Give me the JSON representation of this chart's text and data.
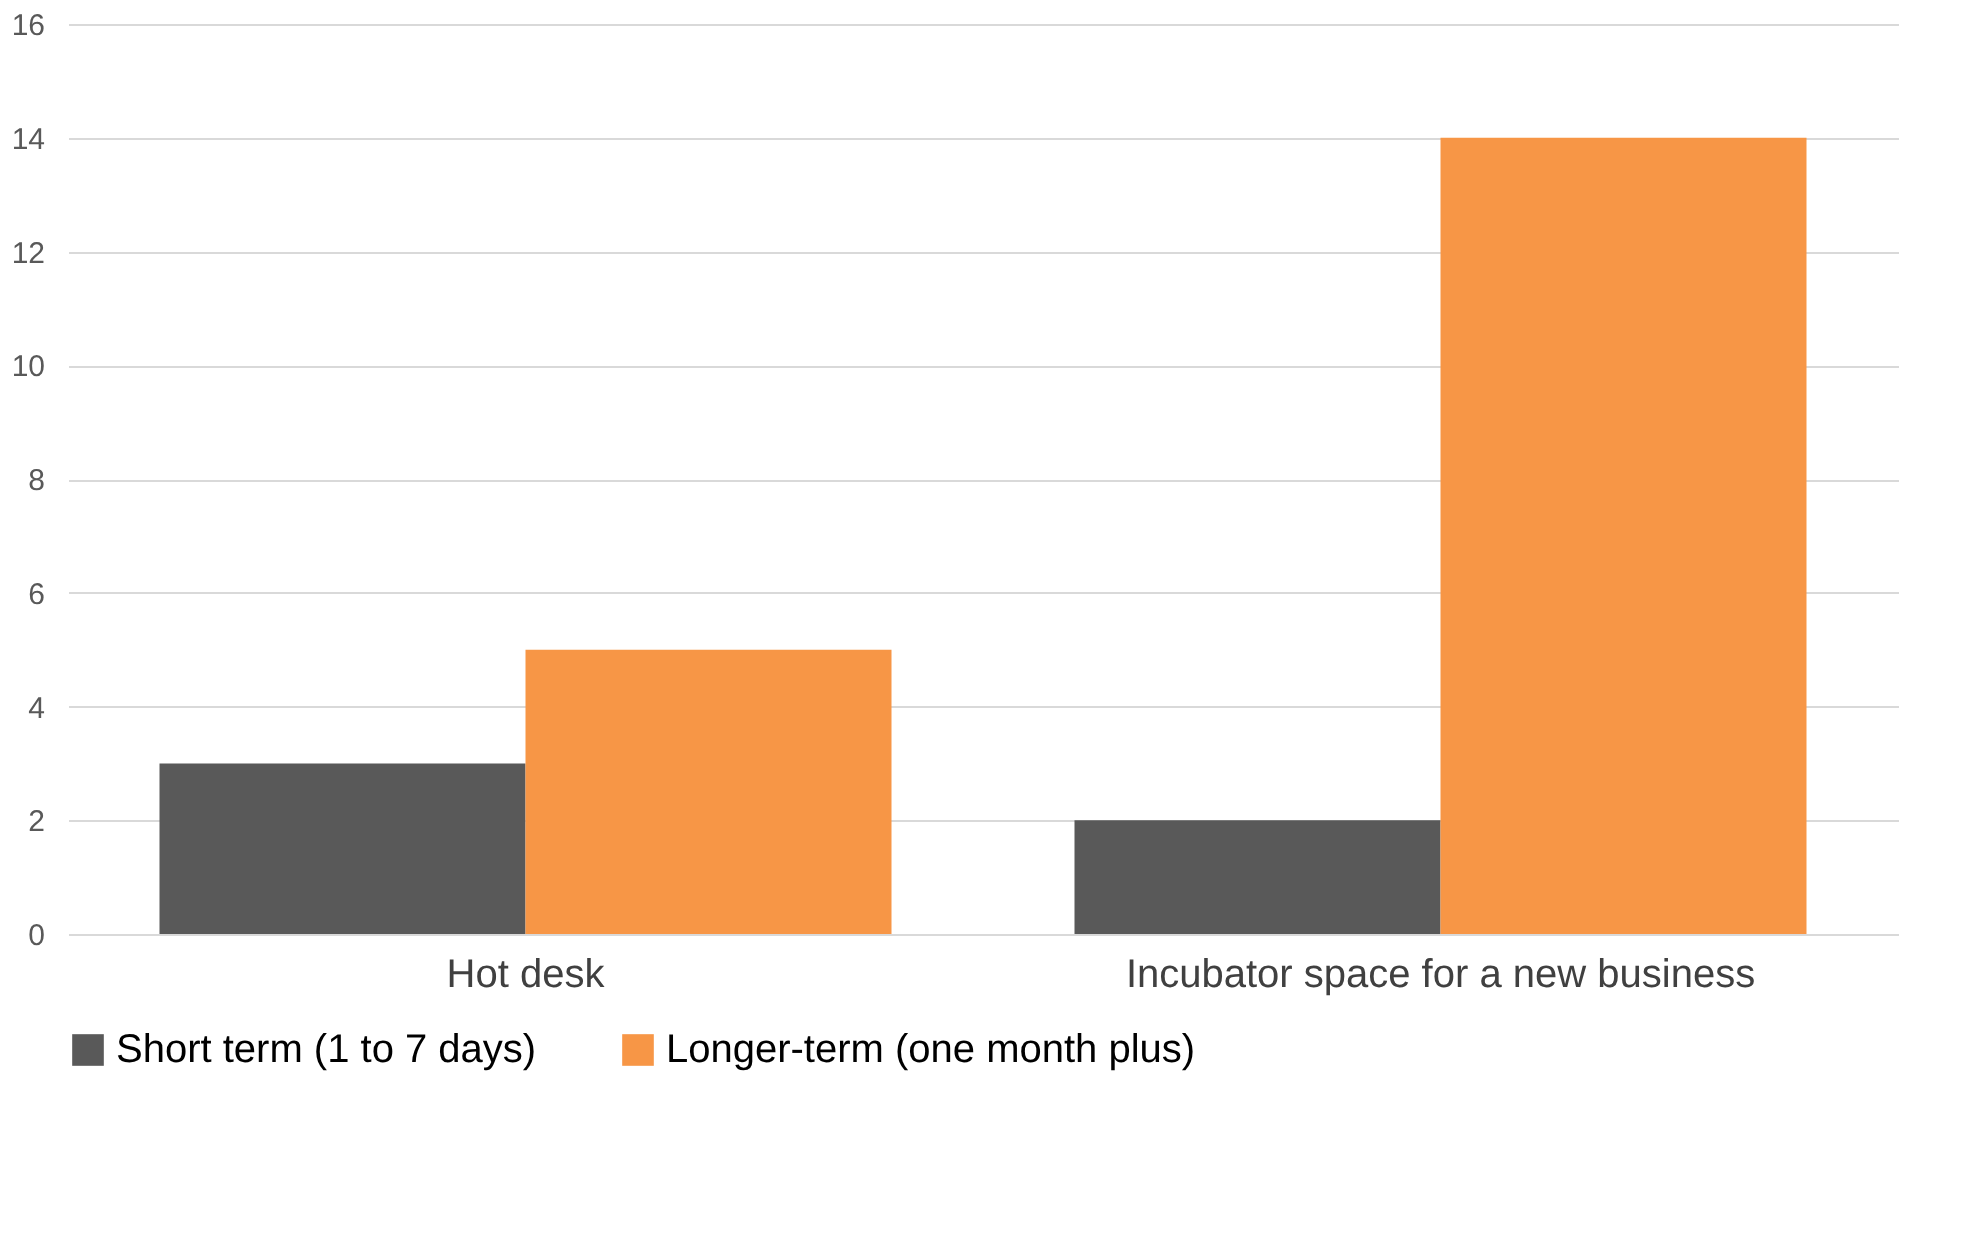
{
  "chart_data": {
    "type": "bar",
    "categories": [
      "Hot desk",
      "Incubator space for a new business"
    ],
    "series": [
      {
        "name": "Short term (1 to 7 days)",
        "color": "#595959",
        "values": [
          3,
          2
        ]
      },
      {
        "name": "Longer-term (one month plus)",
        "color": "#f79646",
        "values": [
          5,
          14
        ]
      }
    ],
    "ylim": [
      0,
      16
    ],
    "yticks": [
      0,
      2,
      4,
      6,
      8,
      10,
      12,
      14,
      16
    ],
    "grid": "y",
    "legend": "bottom"
  }
}
